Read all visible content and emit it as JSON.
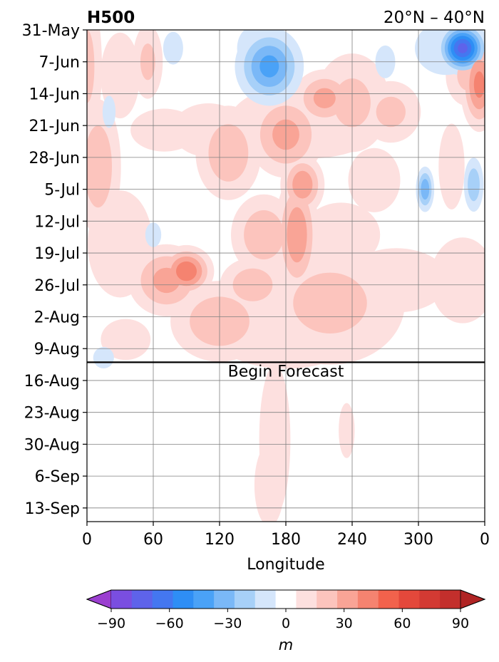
{
  "chart_data": {
    "type": "heatmap",
    "title_left": "H500",
    "title_right": "20°N – 40°N",
    "xlabel": "Longitude",
    "ylabel": "",
    "x_ticks": [
      "0",
      "60",
      "120",
      "180",
      "240",
      "300",
      "0"
    ],
    "xlim": [
      0,
      360
    ],
    "y_ticks": [
      "31-May",
      "7-Jun",
      "14-Jun",
      "21-Jun",
      "28-Jun",
      "5-Jul",
      "12-Jul",
      "19-Jul",
      "26-Jul",
      "2-Aug",
      "9-Aug",
      "16-Aug",
      "23-Aug",
      "30-Aug",
      "6-Sep",
      "13-Sep"
    ],
    "y_axis": "time (days, top = 31-May)",
    "ylim_days": [
      0,
      108
    ],
    "grid": true,
    "forecast_start_day": 73,
    "forecast_label": "Begin Forecast",
    "colorbar": {
      "unit": "m",
      "levels": [
        -100,
        -90,
        -80,
        -70,
        -60,
        -50,
        -40,
        -30,
        -20,
        -10,
        10,
        20,
        30,
        40,
        50,
        60,
        70,
        80,
        90,
        100
      ],
      "tick_values": [
        -90,
        -60,
        -30,
        0,
        30,
        60,
        90
      ],
      "tick_labels": [
        "−90",
        "−60",
        "−30",
        "0",
        "30",
        "60",
        "90"
      ],
      "colors": [
        "#9b3fd0",
        "#7a4ee0",
        "#5e63ea",
        "#4477f0",
        "#2e8ef5",
        "#4aa2f7",
        "#7ab8f7",
        "#a7d0f8",
        "#d5e6fb",
        "#ffffff",
        "#fde0df",
        "#fcc4bd",
        "#f9a496",
        "#f58370",
        "#f2624c",
        "#e4483b",
        "#d33a33",
        "#c32f2c",
        "#b02424"
      ]
    },
    "anomaly_features": [
      {
        "lon": 90,
        "day": 53,
        "value": 50,
        "lon_width": 14,
        "day_width": 3.2
      },
      {
        "lon": 72,
        "day": 55,
        "value": 35,
        "lon_width": 22,
        "day_width": 5
      },
      {
        "lon": 160,
        "day": 45,
        "value": 30,
        "lon_width": 20,
        "day_width": 6
      },
      {
        "lon": 150,
        "day": 56,
        "value": 30,
        "lon_width": 20,
        "day_width": 4
      },
      {
        "lon": 120,
        "day": 64,
        "value": 30,
        "lon_width": 30,
        "day_width": 6
      },
      {
        "lon": 190,
        "day": 45,
        "value": 40,
        "lon_width": 12,
        "day_width": 8
      },
      {
        "lon": 195,
        "day": 34,
        "value": 40,
        "lon_width": 12,
        "day_width": 4
      },
      {
        "lon": 180,
        "day": 23,
        "value": 35,
        "lon_width": 22,
        "day_width": 6
      },
      {
        "lon": 128,
        "day": 27,
        "value": 30,
        "lon_width": 20,
        "day_width": 7
      },
      {
        "lon": 240,
        "day": 16,
        "value": 25,
        "lon_width": 25,
        "day_width": 8
      },
      {
        "lon": 200,
        "day": 20,
        "value": 20,
        "lon_width": 60,
        "day_width": 7
      },
      {
        "lon": 110,
        "day": 22,
        "value": 20,
        "lon_width": 28,
        "day_width": 5
      },
      {
        "lon": 70,
        "day": 22,
        "value": 20,
        "lon_width": 26,
        "day_width": 4
      },
      {
        "lon": 230,
        "day": 45,
        "value": 20,
        "lon_width": 30,
        "day_width": 6
      },
      {
        "lon": 260,
        "day": 33,
        "value": 20,
        "lon_width": 20,
        "day_width": 6
      },
      {
        "lon": 280,
        "day": 55,
        "value": 20,
        "lon_width": 40,
        "day_width": 6
      },
      {
        "lon": 340,
        "day": 55,
        "value": 20,
        "lon_width": 25,
        "day_width": 8
      },
      {
        "lon": 30,
        "day": 47,
        "value": 20,
        "lon_width": 25,
        "day_width": 10
      },
      {
        "lon": 35,
        "day": 68,
        "value": 15,
        "lon_width": 25,
        "day_width": 5
      },
      {
        "lon": 30,
        "day": 10,
        "value": 20,
        "lon_width": 15,
        "day_width": 8
      },
      {
        "lon": 55,
        "day": 7,
        "value": 25,
        "lon_width": 10,
        "day_width": 6
      },
      {
        "lon": 10,
        "day": 30,
        "value": 30,
        "lon_width": 14,
        "day_width": 10
      },
      {
        "lon": 0,
        "day": 8,
        "value": 25,
        "lon_width": 10,
        "day_width": 12
      },
      {
        "lon": 215,
        "day": 15,
        "value": 35,
        "lon_width": 18,
        "day_width": 4
      },
      {
        "lon": 275,
        "day": 18,
        "value": 25,
        "lon_width": 20,
        "day_width": 5
      },
      {
        "lon": 355,
        "day": 12,
        "value": 45,
        "lon_width": 10,
        "day_width": 6
      },
      {
        "lon": 345,
        "day": 10,
        "value": 25,
        "lon_width": 15,
        "day_width": 5
      },
      {
        "lon": 330,
        "day": 30,
        "value": 20,
        "lon_width": 10,
        "day_width": 8
      },
      {
        "lon": 220,
        "day": 60,
        "value": 25,
        "lon_width": 50,
        "day_width": 10
      },
      {
        "lon": 180,
        "day": 65,
        "value": 20,
        "lon_width": 60,
        "day_width": 8
      },
      {
        "lon": 165,
        "day": 8,
        "value": -45,
        "lon_width": 18,
        "day_width": 5
      },
      {
        "lon": 150,
        "day": 4,
        "value": -20,
        "lon_width": 12,
        "day_width": 4
      },
      {
        "lon": 340,
        "day": 4,
        "value": -75,
        "lon_width": 12,
        "day_width": 3
      },
      {
        "lon": 325,
        "day": 4,
        "value": -20,
        "lon_width": 24,
        "day_width": 5
      },
      {
        "lon": 306,
        "day": 35,
        "value": -40,
        "lon_width": 5,
        "day_width": 3
      },
      {
        "lon": 350,
        "day": 34,
        "value": -30,
        "lon_width": 6,
        "day_width": 4
      },
      {
        "lon": 270,
        "day": 7,
        "value": -15,
        "lon_width": 10,
        "day_width": 4
      },
      {
        "lon": 20,
        "day": 18,
        "value": -20,
        "lon_width": 5,
        "day_width": 3
      },
      {
        "lon": 15,
        "day": 72,
        "value": -20,
        "lon_width": 8,
        "day_width": 2
      },
      {
        "lon": 78,
        "day": 4,
        "value": -15,
        "lon_width": 10,
        "day_width": 4
      },
      {
        "lon": 60,
        "day": 45,
        "value": -15,
        "lon_width": 8,
        "day_width": 3
      },
      {
        "lon": 170,
        "day": 90,
        "value": 20,
        "lon_width": 12,
        "day_width": 14
      },
      {
        "lon": 165,
        "day": 100,
        "value": 15,
        "lon_width": 15,
        "day_width": 10
      },
      {
        "lon": 235,
        "day": 88,
        "value": 12,
        "lon_width": 12,
        "day_width": 10
      }
    ]
  }
}
